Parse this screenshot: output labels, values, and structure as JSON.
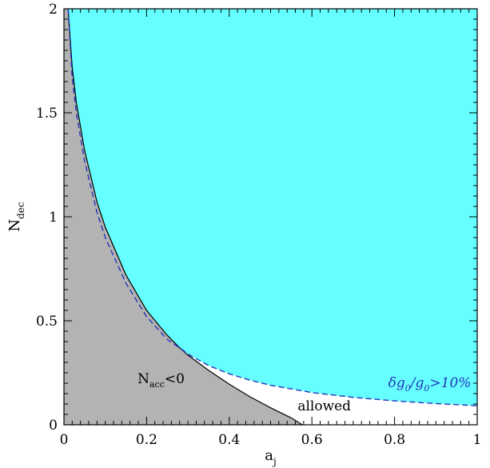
{
  "chart_data": {
    "type": "area",
    "xlim": [
      0,
      1
    ],
    "ylim": [
      0,
      2
    ],
    "xticks": [
      0,
      0.2,
      0.4,
      0.6,
      0.8,
      1
    ],
    "yticks": [
      0,
      0.5,
      1,
      1.5,
      2
    ],
    "xtick_labels": [
      "0",
      "0.2",
      "0.4",
      "0.6",
      "0.8",
      "1"
    ],
    "ytick_labels": [
      "0",
      "0.5",
      "1",
      "1.5",
      "2"
    ],
    "xlabel": {
      "main": "a",
      "sub": "j"
    },
    "ylabel": {
      "main": "N",
      "sub": "dec"
    },
    "grid": false,
    "colors": {
      "excluded_gray": "#b3b3b3",
      "excluded_cyan": "#66ffff",
      "allowed": "#ffffff",
      "boundary_black": "#000000",
      "boundary_blue": "#2233bb"
    },
    "series": [
      {
        "name": "N_acc = 0 boundary",
        "style": "solid",
        "x": [
          0.01,
          0.02,
          0.03,
          0.05,
          0.08,
          0.1,
          0.15,
          0.2,
          0.25,
          0.28,
          0.3,
          0.35,
          0.4,
          0.45,
          0.5,
          0.55,
          0.577
        ],
        "y": [
          2.0,
          1.72,
          1.55,
          1.32,
          1.07,
          0.95,
          0.72,
          0.55,
          0.43,
          0.37,
          0.335,
          0.262,
          0.195,
          0.135,
          0.082,
          0.033,
          0.0
        ]
      },
      {
        "name": "δg0/g0 = 10% boundary",
        "style": "dashed",
        "x": [
          0.01,
          0.02,
          0.03,
          0.05,
          0.08,
          0.1,
          0.15,
          0.2,
          0.25,
          0.28,
          0.3,
          0.35,
          0.4,
          0.45,
          0.5,
          0.6,
          0.7,
          0.8,
          0.9,
          1.0
        ],
        "y": [
          2.0,
          1.67,
          1.5,
          1.27,
          1.02,
          0.9,
          0.68,
          0.52,
          0.41,
          0.37,
          0.34,
          0.285,
          0.245,
          0.215,
          0.19,
          0.155,
          0.132,
          0.115,
          0.102,
          0.092
        ]
      }
    ],
    "regions": [
      {
        "id": "nacc",
        "label_main": "N",
        "label_sub": "acc",
        "label_tail": "<0",
        "x": 0.235,
        "y": 0.2
      },
      {
        "id": "allowed",
        "label": "allowed",
        "x": 0.63,
        "y": 0.07
      },
      {
        "id": "dg",
        "label_pre": "δg",
        "label_sub1": "0",
        "label_mid": "/g",
        "label_sub2": "0",
        "label_tail": ">10%",
        "x": 0.885,
        "y": 0.18
      }
    ]
  }
}
